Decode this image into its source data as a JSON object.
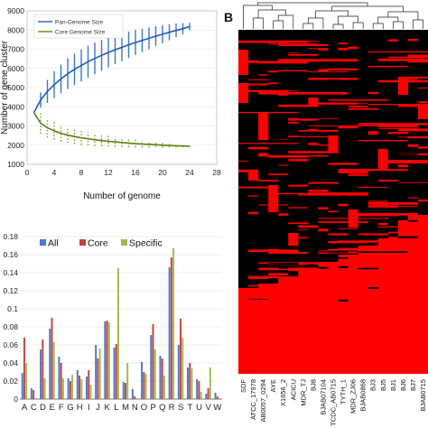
{
  "chart_data": [
    {
      "type": "line",
      "ylabel": "Number of gene cluster",
      "xlabel": "Number of genome",
      "x_ticks": [
        "0",
        "4",
        "8",
        "12",
        "16",
        "20",
        "24",
        "28"
      ],
      "y_ticks": [
        "1000",
        "2000",
        "3000",
        "4000",
        "5000",
        "6000",
        "7000",
        "8000",
        "9000"
      ],
      "xlim": [
        0,
        28
      ],
      "ylim": [
        1000,
        9000
      ],
      "legend_position": "top-left",
      "series": [
        {
          "name": "Pan-Genome Size",
          "color": "#3a78c8",
          "x": [
            1,
            2,
            3,
            4,
            5,
            6,
            7,
            8,
            9,
            10,
            11,
            12,
            13,
            14,
            15,
            16,
            17,
            18,
            19,
            20,
            21,
            22,
            23,
            24
          ],
          "y": [
            3700,
            4350,
            4800,
            5150,
            5450,
            5720,
            5950,
            6150,
            6350,
            6520,
            6680,
            6830,
            6970,
            7100,
            7230,
            7350,
            7460,
            7570,
            7680,
            7780,
            7880,
            7980,
            8070,
            8180
          ],
          "spread": [
            0,
            400,
            600,
            700,
            750,
            800,
            820,
            830,
            830,
            820,
            800,
            780,
            750,
            720,
            690,
            650,
            610,
            570,
            520,
            470,
            420,
            360,
            290,
            200
          ]
        },
        {
          "name": "Core Genome Size",
          "color": "#7a9a22",
          "x": [
            1,
            2,
            3,
            4,
            5,
            6,
            7,
            8,
            9,
            10,
            11,
            12,
            13,
            14,
            15,
            16,
            17,
            18,
            19,
            20,
            21,
            22,
            23,
            24
          ],
          "y": [
            3700,
            3150,
            2900,
            2750,
            2620,
            2520,
            2450,
            2380,
            2330,
            2280,
            2240,
            2200,
            2170,
            2140,
            2110,
            2080,
            2060,
            2040,
            2020,
            2000,
            1985,
            1970,
            1955,
            1940
          ],
          "spread": [
            0,
            550,
            500,
            450,
            420,
            400,
            380,
            360,
            340,
            320,
            300,
            280,
            260,
            240,
            220,
            200,
            180,
            160,
            140,
            120,
            100,
            80,
            60,
            40
          ]
        }
      ]
    },
    {
      "type": "bar",
      "categories": [
        "A",
        "C",
        "D",
        "E",
        "F",
        "G",
        "H",
        "I",
        "J",
        "K",
        "L",
        "M",
        "N",
        "O",
        "P",
        "Q",
        "R",
        "S",
        "T",
        "U",
        "V",
        "W"
      ],
      "y_ticks": [
        "0",
        "0.02",
        "0.04",
        "0.06",
        "0.08",
        "0.1",
        "0.12",
        "0.14",
        "0.16",
        "0.18"
      ],
      "ylim": [
        0,
        0.18
      ],
      "legend_position": "top-left",
      "series": [
        {
          "name": "All",
          "color": "#4a7ac8",
          "values": [
            0.029,
            0.012,
            0.055,
            0.078,
            0.047,
            0.023,
            0.032,
            0.025,
            0.06,
            0.086,
            0.057,
            0.019,
            0.011,
            0.041,
            0.071,
            0.048,
            0.146,
            0.06,
            0.035,
            0.022,
            0.006,
            0.007
          ]
        },
        {
          "name": "Core",
          "color": "#c8413c",
          "values": [
            0.068,
            0.01,
            0.066,
            0.09,
            0.04,
            0.02,
            0.026,
            0.032,
            0.045,
            0.087,
            0.061,
            0.018,
            0.003,
            0.03,
            0.083,
            0.045,
            0.157,
            0.089,
            0.04,
            0.02,
            0.012,
            0.003
          ]
        },
        {
          "name": "Specific",
          "color": "#9bbb59",
          "values": [
            0.04,
            0.001,
            0.023,
            0.063,
            0.023,
            0.027,
            0.022,
            0.016,
            0.056,
            0.085,
            0.145,
            0.04,
            0.001,
            0.028,
            0.055,
            0.026,
            0.167,
            0.068,
            0.034,
            0.008,
            0.035,
            0.001
          ]
        }
      ]
    },
    {
      "type": "heatmap",
      "panel_label": "B",
      "colors": {
        "absent": "#000000",
        "present": "#ff0000"
      },
      "columns": [
        "SDF",
        "ATCC_17978",
        "AB0057_0294",
        "AYE",
        "X1656_2",
        "ACICU",
        "MDR_TJ",
        "BJ8",
        "BJAB07104",
        "TCDC_AB0715",
        "TYTH_1",
        "MDR_ZJ06",
        "BJAB0868",
        "BJ3",
        "BJ5",
        "BJ1",
        "BJ6",
        "BJ7",
        "BJAB0715"
      ],
      "column_labels_visible": [
        "SDF",
        "ATCC_17978",
        "AB0057_0294",
        "AYE",
        "X1656_2",
        "ACICU",
        "MDR_TJ",
        "BJ8",
        "BJAB07104",
        "TCDC_AB0715",
        "TYTH_1",
        "MDR_ZJ06",
        "BJAB0868",
        "BJ3",
        "BJ5",
        "BJ1",
        "BJ6",
        "BJ7",
        "BJAB0715"
      ]
    }
  ],
  "panel_labels": {
    "b": "B"
  }
}
